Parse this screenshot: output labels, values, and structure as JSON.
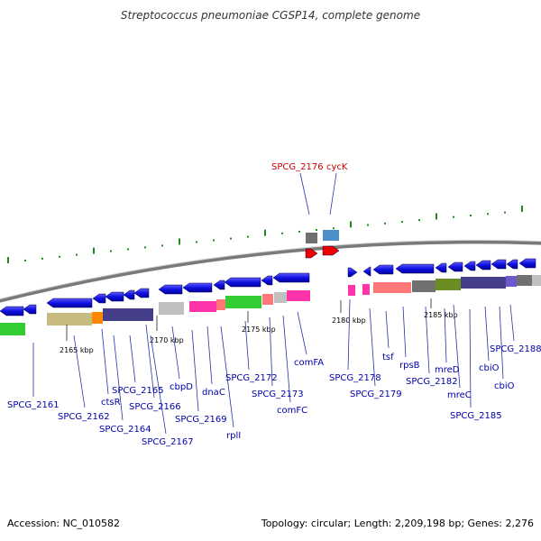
{
  "title": "Streptococcus pneumoniae CGSP14, complete genome",
  "accession": "Accession: NC_010582",
  "topology": "Topology: circular; Length: 2,209,198 bp; Genes: 2,276",
  "colors": {
    "gene_arrow": "#1a1ae6",
    "label_blue": "#0000aa",
    "label_red": "#cc0000",
    "backbone": "#888888",
    "tick": "#1f8a1f"
  },
  "kbp_markers": [
    "2165 kbp",
    "2170 kbp",
    "2175 kbp",
    "2180 kbp",
    "2185 kbp"
  ],
  "gene_labels": [
    {
      "text": "SPCG_2161",
      "color": "blue"
    },
    {
      "text": "SPCG_2162",
      "color": "blue"
    },
    {
      "text": "ctsR",
      "color": "blue"
    },
    {
      "text": "SPCG_2164",
      "color": "blue"
    },
    {
      "text": "SPCG_2165",
      "color": "blue"
    },
    {
      "text": "SPCG_2166",
      "color": "blue"
    },
    {
      "text": "SPCG_2167",
      "color": "blue"
    },
    {
      "text": "cbpD",
      "color": "blue"
    },
    {
      "text": "SPCG_2169",
      "color": "blue"
    },
    {
      "text": "dnaC",
      "color": "blue"
    },
    {
      "text": "rplI",
      "color": "blue"
    },
    {
      "text": "SPCG_2172",
      "color": "blue"
    },
    {
      "text": "SPCG_2173",
      "color": "blue"
    },
    {
      "text": "comFC",
      "color": "blue"
    },
    {
      "text": "comFA",
      "color": "blue"
    },
    {
      "text": "SPCG_2176",
      "color": "red"
    },
    {
      "text": "cycK",
      "color": "red"
    },
    {
      "text": "SPCG_2178",
      "color": "blue"
    },
    {
      "text": "SPCG_2179",
      "color": "blue"
    },
    {
      "text": "tsf",
      "color": "blue"
    },
    {
      "text": "rpsB",
      "color": "blue"
    },
    {
      "text": "SPCG_2182",
      "color": "blue"
    },
    {
      "text": "mreD",
      "color": "blue"
    },
    {
      "text": "mreC",
      "color": "blue"
    },
    {
      "text": "SPCG_2185",
      "color": "blue"
    },
    {
      "text": "cbiO",
      "color": "blue"
    },
    {
      "text": "cbiO",
      "color": "blue"
    },
    {
      "text": "SPCG_2188",
      "color": "blue"
    }
  ]
}
